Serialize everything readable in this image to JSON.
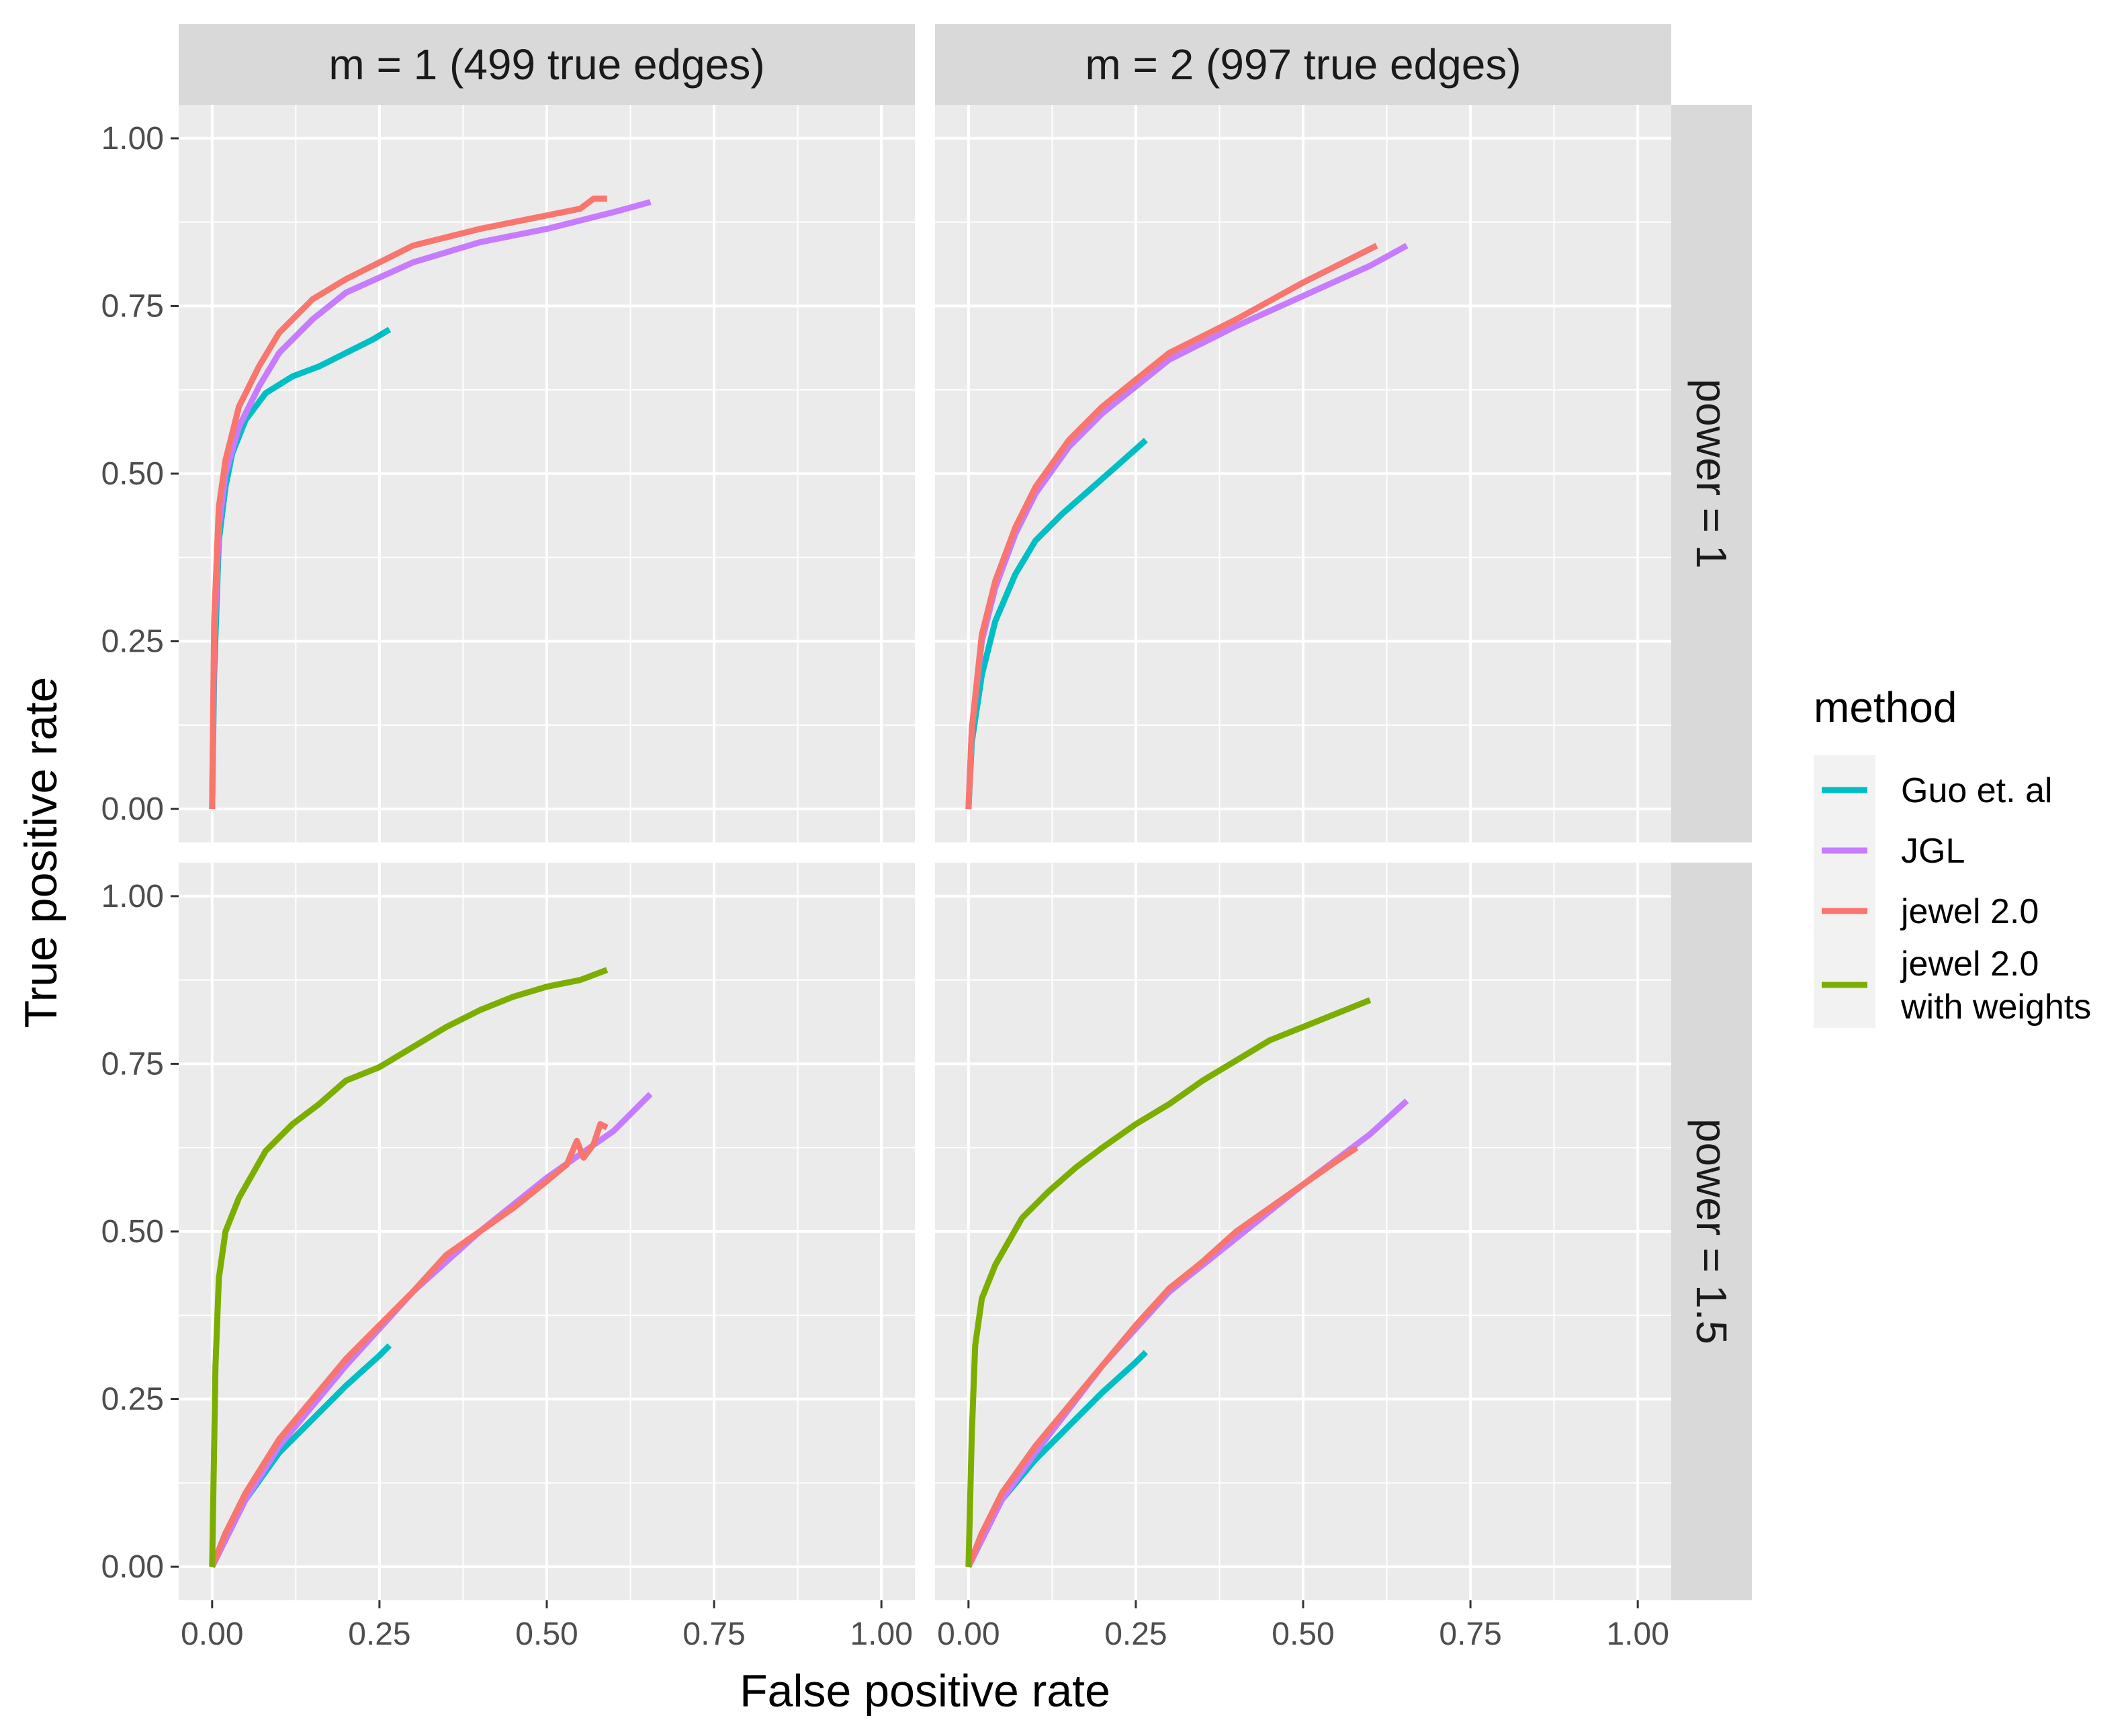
{
  "chart_data": {
    "type": "line",
    "xlabel": "False positive rate",
    "ylabel": "True positive rate",
    "xlim": [
      -0.05,
      1.05
    ],
    "ylim": [
      -0.05,
      1.05
    ],
    "x_ticks": [
      0,
      0.25,
      0.5,
      0.75,
      1
    ],
    "x_tick_labels": [
      "0.00",
      "0.25",
      "0.50",
      "0.75",
      "1.00"
    ],
    "y_ticks": [
      0,
      0.25,
      0.5,
      0.75,
      1
    ],
    "y_tick_labels": [
      "0.00",
      "0.25",
      "0.50",
      "0.75",
      "1.00"
    ],
    "col_facets": [
      "m = 1 (499 true edges)",
      "m = 2 (997 true edges)"
    ],
    "row_facets": [
      "power = 1",
      "power = 1.5"
    ],
    "legend": {
      "title": "method",
      "entries": [
        {
          "label": "Guo et. al",
          "color": "#00BFC4"
        },
        {
          "label": "JGL",
          "color": "#C77CFF"
        },
        {
          "label": "jewel 2.0",
          "color": "#F8766D"
        },
        {
          "label": "jewel 2.0\nwith weights",
          "color": "#7CAE00"
        }
      ]
    },
    "panels": [
      {
        "row": 0,
        "col": 0,
        "series": [
          {
            "name": "Guo et. al",
            "color": "#00BFC4",
            "x": [
              0,
              0.003,
              0.01,
              0.02,
              0.03,
              0.05,
              0.08,
              0.12,
              0.16,
              0.2,
              0.24,
              0.265
            ],
            "y": [
              0,
              0.2,
              0.4,
              0.48,
              0.53,
              0.58,
              0.62,
              0.645,
              0.66,
              0.68,
              0.7,
              0.715
            ]
          },
          {
            "name": "JGL",
            "color": "#C77CFF",
            "x": [
              0,
              0.003,
              0.01,
              0.02,
              0.04,
              0.07,
              0.1,
              0.15,
              0.2,
              0.3,
              0.4,
              0.5,
              0.6,
              0.655
            ],
            "y": [
              0,
              0.25,
              0.42,
              0.5,
              0.57,
              0.63,
              0.68,
              0.73,
              0.77,
              0.815,
              0.845,
              0.865,
              0.89,
              0.905
            ]
          },
          {
            "name": "jewel 2.0",
            "color": "#F8766D",
            "x": [
              0,
              0.003,
              0.01,
              0.02,
              0.04,
              0.07,
              0.1,
              0.15,
              0.2,
              0.3,
              0.4,
              0.45,
              0.5,
              0.55,
              0.57,
              0.59
            ],
            "y": [
              0,
              0.28,
              0.45,
              0.52,
              0.6,
              0.66,
              0.71,
              0.76,
              0.79,
              0.84,
              0.865,
              0.875,
              0.885,
              0.895,
              0.91,
              0.91
            ]
          }
        ]
      },
      {
        "row": 0,
        "col": 1,
        "series": [
          {
            "name": "Guo et. al",
            "color": "#00BFC4",
            "x": [
              0,
              0.005,
              0.02,
              0.04,
              0.07,
              0.1,
              0.14,
              0.18,
              0.22,
              0.265
            ],
            "y": [
              0,
              0.1,
              0.2,
              0.28,
              0.35,
              0.4,
              0.44,
              0.475,
              0.51,
              0.55
            ]
          },
          {
            "name": "JGL",
            "color": "#C77CFF",
            "x": [
              0,
              0.005,
              0.02,
              0.04,
              0.07,
              0.1,
              0.15,
              0.2,
              0.25,
              0.3,
              0.4,
              0.5,
              0.6,
              0.655
            ],
            "y": [
              0,
              0.12,
              0.25,
              0.33,
              0.41,
              0.47,
              0.54,
              0.59,
              0.63,
              0.67,
              0.72,
              0.765,
              0.81,
              0.84
            ]
          },
          {
            "name": "jewel 2.0",
            "color": "#F8766D",
            "x": [
              0,
              0.005,
              0.02,
              0.04,
              0.07,
              0.1,
              0.15,
              0.2,
              0.25,
              0.3,
              0.4,
              0.5,
              0.55,
              0.6,
              0.61
            ],
            "y": [
              0,
              0.12,
              0.26,
              0.34,
              0.42,
              0.48,
              0.55,
              0.6,
              0.64,
              0.68,
              0.73,
              0.785,
              0.81,
              0.835,
              0.84
            ]
          }
        ]
      },
      {
        "row": 1,
        "col": 0,
        "series": [
          {
            "name": "Guo et. al",
            "color": "#00BFC4",
            "x": [
              0,
              0.02,
              0.05,
              0.1,
              0.15,
              0.2,
              0.25,
              0.265
            ],
            "y": [
              0,
              0.05,
              0.1,
              0.17,
              0.22,
              0.27,
              0.315,
              0.33
            ]
          },
          {
            "name": "JGL",
            "color": "#C77CFF",
            "x": [
              0,
              0.05,
              0.1,
              0.2,
              0.3,
              0.4,
              0.5,
              0.6,
              0.655
            ],
            "y": [
              0,
              0.1,
              0.18,
              0.3,
              0.41,
              0.5,
              0.58,
              0.65,
              0.705
            ]
          },
          {
            "name": "jewel 2.0",
            "color": "#F8766D",
            "x": [
              0,
              0.02,
              0.05,
              0.1,
              0.15,
              0.2,
              0.25,
              0.3,
              0.35,
              0.4,
              0.45,
              0.5,
              0.53,
              0.545,
              0.555,
              0.57,
              0.58,
              0.59
            ],
            "y": [
              0,
              0.05,
              0.11,
              0.19,
              0.25,
              0.31,
              0.36,
              0.41,
              0.465,
              0.5,
              0.535,
              0.575,
              0.6,
              0.635,
              0.61,
              0.63,
              0.66,
              0.655
            ]
          },
          {
            "name": "jewel 2.0\nwith weights",
            "color": "#7CAE00",
            "x": [
              0,
              0.005,
              0.01,
              0.02,
              0.04,
              0.08,
              0.12,
              0.16,
              0.2,
              0.25,
              0.3,
              0.35,
              0.4,
              0.45,
              0.5,
              0.55,
              0.59
            ],
            "y": [
              0,
              0.3,
              0.43,
              0.5,
              0.55,
              0.62,
              0.66,
              0.69,
              0.725,
              0.745,
              0.775,
              0.805,
              0.83,
              0.85,
              0.865,
              0.875,
              0.89
            ]
          }
        ]
      },
      {
        "row": 1,
        "col": 1,
        "series": [
          {
            "name": "Guo et. al",
            "color": "#00BFC4",
            "x": [
              0,
              0.02,
              0.05,
              0.1,
              0.15,
              0.2,
              0.25,
              0.265
            ],
            "y": [
              0,
              0.05,
              0.1,
              0.16,
              0.21,
              0.26,
              0.305,
              0.32
            ]
          },
          {
            "name": "JGL",
            "color": "#C77CFF",
            "x": [
              0,
              0.05,
              0.1,
              0.2,
              0.3,
              0.4,
              0.5,
              0.6,
              0.655
            ],
            "y": [
              0,
              0.1,
              0.17,
              0.3,
              0.41,
              0.49,
              0.57,
              0.645,
              0.695
            ]
          },
          {
            "name": "jewel 2.0",
            "color": "#F8766D",
            "x": [
              0,
              0.02,
              0.05,
              0.1,
              0.15,
              0.2,
              0.25,
              0.3,
              0.35,
              0.4,
              0.45,
              0.5,
              0.55,
              0.58
            ],
            "y": [
              0,
              0.05,
              0.11,
              0.18,
              0.24,
              0.3,
              0.36,
              0.415,
              0.455,
              0.5,
              0.535,
              0.57,
              0.605,
              0.625
            ]
          },
          {
            "name": "jewel 2.0\nwith weights",
            "color": "#7CAE00",
            "x": [
              0,
              0.005,
              0.01,
              0.02,
              0.04,
              0.08,
              0.12,
              0.16,
              0.2,
              0.25,
              0.3,
              0.35,
              0.4,
              0.45,
              0.5,
              0.55,
              0.6
            ],
            "y": [
              0,
              0.2,
              0.33,
              0.4,
              0.45,
              0.52,
              0.56,
              0.595,
              0.625,
              0.66,
              0.69,
              0.725,
              0.755,
              0.785,
              0.805,
              0.825,
              0.845
            ]
          }
        ]
      }
    ]
  }
}
